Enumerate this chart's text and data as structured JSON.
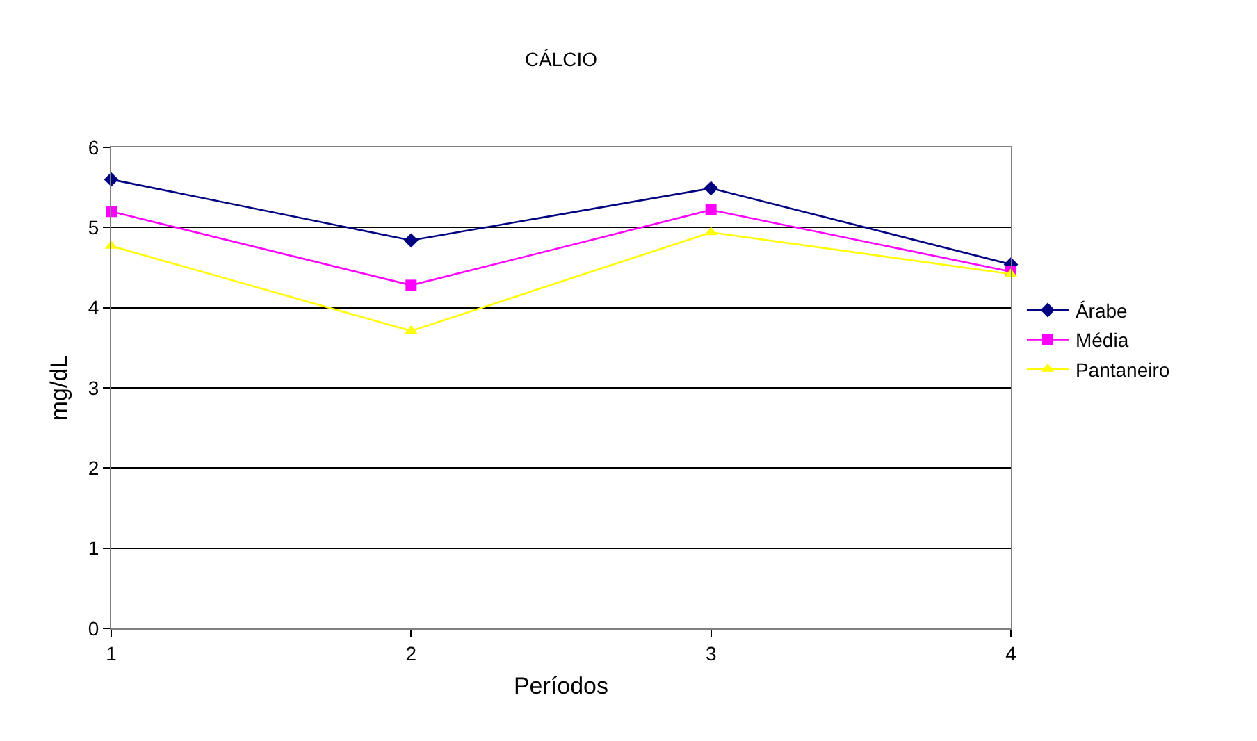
{
  "chart_data": {
    "type": "line",
    "title": "CÁLCIO",
    "xlabel": "Períodos",
    "ylabel": "mg/dL",
    "x": [
      1,
      2,
      3,
      4
    ],
    "xlim": [
      1,
      4
    ],
    "xticks": [
      1,
      2,
      3,
      4
    ],
    "ylim": [
      0,
      6
    ],
    "yticks": [
      0,
      1,
      2,
      3,
      4,
      5,
      6
    ],
    "grid": "y",
    "legend": "right",
    "line_style": "solid",
    "series": [
      {
        "name": "Árabe",
        "color": "#000080",
        "marker": "diamond",
        "values": [
          5.6,
          4.84,
          5.49,
          4.54
        ]
      },
      {
        "name": "Média",
        "color": "#ff00ff",
        "marker": "square",
        "values": [
          5.2,
          4.28,
          5.22,
          4.45
        ]
      },
      {
        "name": "Pantaneiro",
        "color": "#ffff00",
        "marker": "triangle",
        "values": [
          4.77,
          3.71,
          4.94,
          4.42
        ]
      }
    ]
  }
}
